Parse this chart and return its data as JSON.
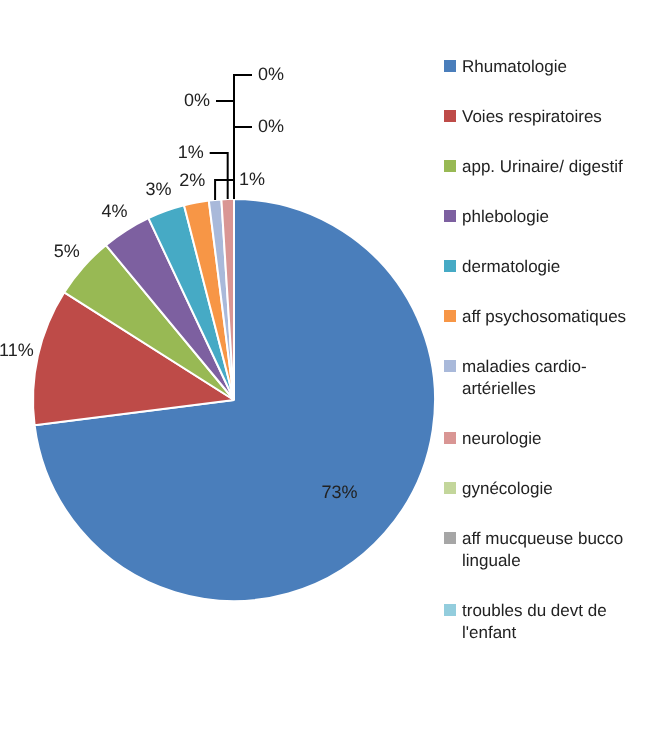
{
  "chart_data": {
    "type": "pie",
    "categories": [
      "Rhumatologie",
      "Voies respiratoires",
      "app. Urinaire/ digestif",
      "phlebologie",
      "dermatologie",
      "aff psychosomatiques",
      "maladies cardio-artérielles",
      "neurologie",
      "gynécologie",
      "aff mucqueuse bucco linguale",
      "troubles du devt de l'enfant"
    ],
    "values": [
      73,
      11,
      5,
      4,
      3,
      2,
      1,
      1,
      0,
      0,
      0
    ],
    "colors": [
      "#4a7ebb",
      "#be4b48",
      "#98b954",
      "#7d60a0",
      "#46aac5",
      "#f79646",
      "#a9b9da",
      "#d99694",
      "#c3d69b",
      "#a6a6a6",
      "#93cddd"
    ],
    "value_labels": [
      "73%",
      "11%",
      "5%",
      "4%",
      "3%",
      "2%",
      "1%",
      "1%",
      "0%",
      "0%",
      "0%"
    ],
    "legend": "right"
  }
}
